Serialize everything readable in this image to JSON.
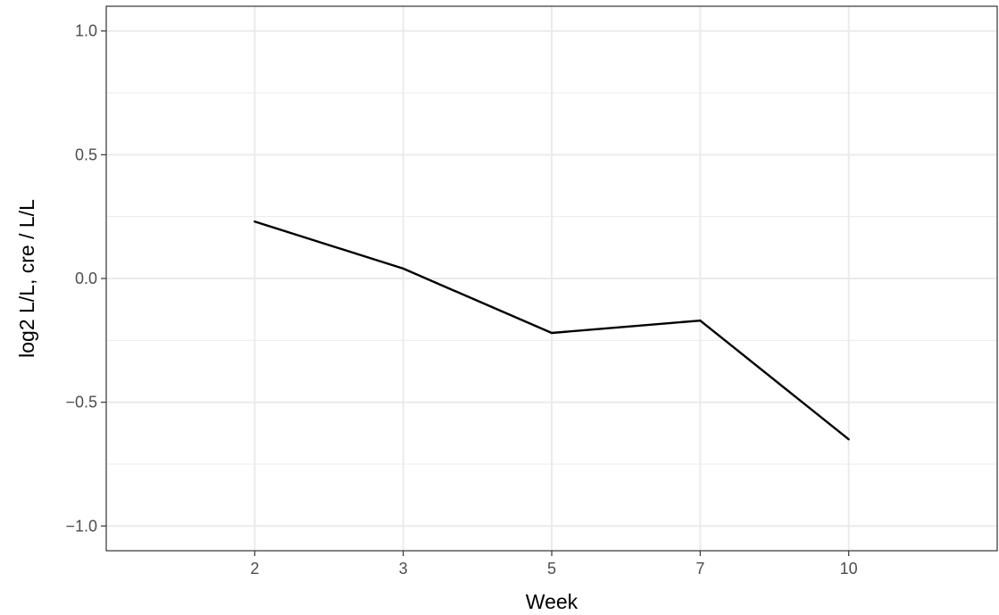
{
  "chart_data": {
    "type": "line",
    "title": "",
    "xlabel": "Week",
    "ylabel": "log2 L/L, cre /  L/L",
    "categories": [
      "2",
      "3",
      "5",
      "7",
      "10"
    ],
    "series": [
      {
        "values": [
          0.23,
          0.04,
          -0.22,
          -0.17,
          -0.65
        ]
      }
    ],
    "ylim": [
      -1.1,
      1.1
    ],
    "yticks": [
      -1.0,
      -0.5,
      0.0,
      0.5,
      1.0
    ],
    "ytick_labels": [
      "−1.0",
      "−0.5",
      "0.0",
      "0.5",
      "1.0"
    ],
    "grid": true,
    "legend": "none",
    "colors": {
      "line": "#000000",
      "grid": "#ebebeb",
      "panel_border": "#333333"
    }
  }
}
